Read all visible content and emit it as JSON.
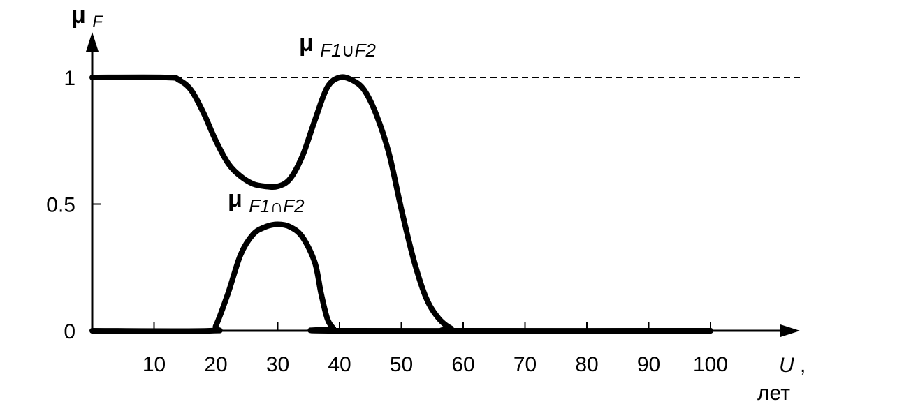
{
  "chart_data": {
    "type": "line",
    "x_ticks": [
      10,
      20,
      30,
      40,
      50,
      60,
      70,
      80,
      90,
      100
    ],
    "y_ticks": [
      {
        "value": 0,
        "label": "0"
      },
      {
        "value": 0.5,
        "label": "0.5"
      },
      {
        "value": 1,
        "label": "1"
      }
    ],
    "xlim": [
      0,
      100
    ],
    "ylim": [
      0,
      1
    ],
    "grid": false,
    "reference_line": {
      "y": 1,
      "style": "dashed"
    },
    "ylabel": {
      "main": "μ",
      "sub": "F"
    },
    "xlabel": {
      "main": "U",
      "suffix": ",",
      "unit": "лет"
    },
    "series": [
      {
        "name": {
          "main": "μ",
          "sub": "F1∪F2"
        },
        "x": [
          0,
          12,
          14,
          16,
          18,
          20,
          22,
          24,
          26,
          28,
          30,
          32,
          34,
          36,
          38,
          40,
          42,
          44,
          46,
          48,
          50,
          52,
          54,
          56,
          58,
          60,
          100
        ],
        "y": [
          1,
          1,
          0.99,
          0.95,
          0.86,
          0.75,
          0.66,
          0.61,
          0.58,
          0.57,
          0.57,
          0.6,
          0.69,
          0.83,
          0.96,
          1,
          0.99,
          0.95,
          0.85,
          0.7,
          0.48,
          0.28,
          0.13,
          0.05,
          0.01,
          0,
          0
        ]
      },
      {
        "name": {
          "main": "μ",
          "sub": "F1∩F2"
        },
        "x": [
          0,
          19,
          20,
          22,
          24,
          26,
          28,
          30,
          32,
          34,
          36,
          37,
          38,
          39,
          40,
          100
        ],
        "y": [
          0,
          0,
          0.02,
          0.15,
          0.3,
          0.38,
          0.41,
          0.42,
          0.41,
          0.37,
          0.27,
          0.15,
          0.05,
          0.01,
          0,
          0
        ]
      }
    ]
  }
}
